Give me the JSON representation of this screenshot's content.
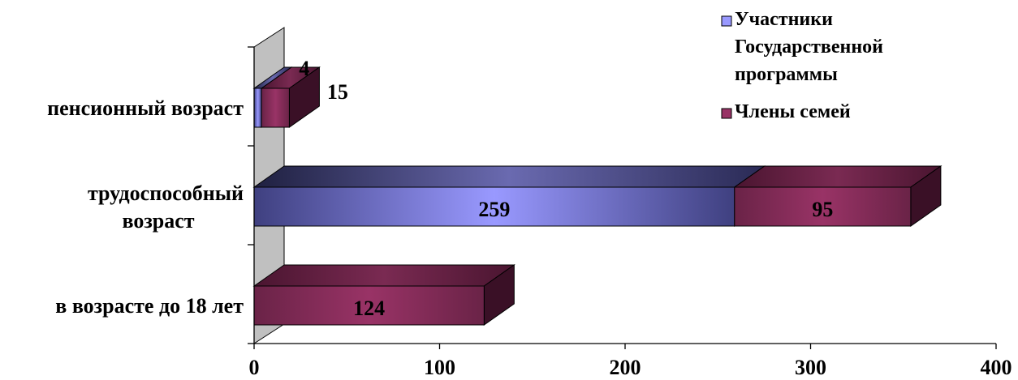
{
  "chart_data": {
    "type": "bar",
    "orientation": "horizontal",
    "stacked": true,
    "three_d": true,
    "categories": [
      "в возрасте до 18 лет",
      "трудоспособный возраст",
      "пенсионный возраст"
    ],
    "category_lines": [
      [
        "в возрасте до 18 лет"
      ],
      [
        "трудоспособный",
        "возраст"
      ],
      [
        "пенсионный возраст"
      ]
    ],
    "series": [
      {
        "name": "Участники Государственной программы",
        "name_lines": [
          "Участники",
          "Государственной",
          "программы"
        ],
        "values": [
          0,
          259,
          4
        ],
        "color": "#9999FF"
      },
      {
        "name": "Члены семей",
        "name_lines": [
          "Члены семей"
        ],
        "values": [
          124,
          95,
          15
        ],
        "color": "#993366"
      }
    ],
    "data_labels": [
      {
        "text": "124"
      },
      {
        "text": "259"
      },
      {
        "text": "95"
      },
      {
        "text": "4"
      },
      {
        "text": "15"
      }
    ],
    "xlim": [
      0,
      400
    ],
    "xticks": [
      0,
      100,
      200,
      300,
      400
    ],
    "legend": "top-right",
    "grid": false
  }
}
